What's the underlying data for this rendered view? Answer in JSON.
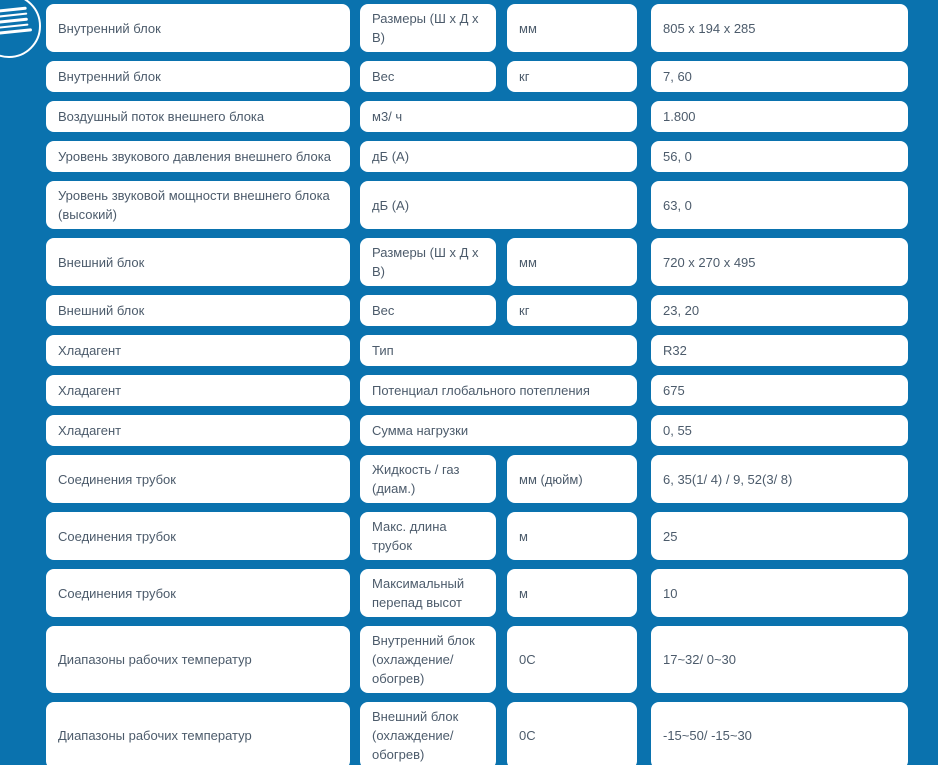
{
  "page": {
    "background_color": "#0a72ae",
    "cell_background_color": "#ffffff",
    "text_color": "#4c5b6b"
  },
  "icon": {
    "name": "spec-sheet-icon"
  },
  "table": {
    "rows": [
      {
        "param": "Внутренний блок",
        "sub": "Размеры (Ш х Д х В)",
        "unit": "мм",
        "value": "805 x 194 x 285"
      },
      {
        "param": "Внутренний блок",
        "sub": "Вес",
        "unit": "кг",
        "value": "7, 60"
      },
      {
        "param": "Воздушный поток внешнего блока",
        "sub": "",
        "unit": "м3/ ч",
        "value": "1.800"
      },
      {
        "param": "Уровень звукового давления внешнего блока",
        "sub": "",
        "unit": "дБ (А)",
        "value": "56, 0"
      },
      {
        "param": "Уровень звуковой мощности внешнего блока (высокий)",
        "sub": "",
        "unit": "дБ (А)",
        "value": "63, 0"
      },
      {
        "param": "Внешний блок",
        "sub": "Размеры (Ш х Д х В)",
        "unit": "мм",
        "value": "720 x 270 x 495"
      },
      {
        "param": "Внешний блок",
        "sub": "Вес",
        "unit": "кг",
        "value": "23, 20"
      },
      {
        "param": "Хладагент",
        "sub": "Тип",
        "unit": "",
        "value": "R32"
      },
      {
        "param": "Хладагент",
        "sub": "Потенциал глобального потепления",
        "unit": "",
        "value": "675"
      },
      {
        "param": "Хладагент",
        "sub": "Сумма нагрузки",
        "unit": "",
        "value": "0, 55"
      },
      {
        "param": "Соединения трубок",
        "sub": "Жидкость / газ (диам.)",
        "unit": "мм (дюйм)",
        "value": "6, 35(1/ 4) / 9, 52(3/ 8)"
      },
      {
        "param": "Соединения трубок",
        "sub": "Макс. длина трубок",
        "unit": "м",
        "value": "25"
      },
      {
        "param": "Соединения трубок",
        "sub": "Максимальный перепад высот",
        "unit": "м",
        "value": "10"
      },
      {
        "param": "Диапазоны рабочих температур",
        "sub": "Внутренний блок (охлаждение/ обогрев)",
        "unit": "0С",
        "value": "17~32/ 0~30"
      },
      {
        "param": "Диапазоны рабочих температур",
        "sub": "Внешний блок (охлаждение/ обогрев)",
        "unit": "0С",
        "value": "-15~50/ -15~30"
      }
    ]
  }
}
